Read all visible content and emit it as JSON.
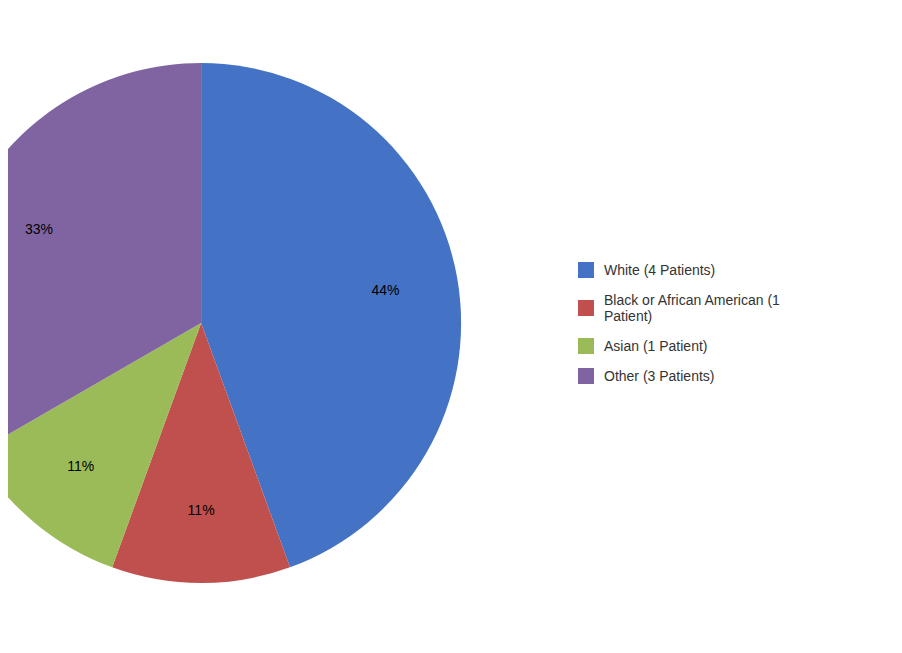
{
  "chart_data": {
    "type": "pie",
    "categories": [
      "White (4 Patients)",
      "Black or African American (1\n Patient)",
      "Asian (1 Patient)",
      "Other (3 Patients)"
    ],
    "values": [
      44,
      11,
      11,
      33
    ],
    "value_labels": [
      "44%",
      "11%",
      "11%",
      "33%"
    ],
    "colors": [
      "#4472C4",
      "#C0504D",
      "#9BBB59",
      "#8064A2"
    ],
    "data_labels": true,
    "legend": "right"
  }
}
